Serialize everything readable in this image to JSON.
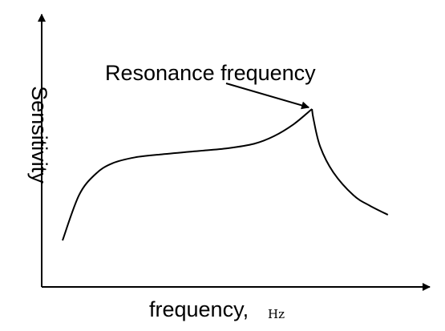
{
  "chart_data": {
    "type": "line",
    "xlabel": "frequency,",
    "xunit": "Hz",
    "ylabel": "Sensitivity",
    "grid": false,
    "annotation": {
      "text": "Resonance frequency",
      "target": "curve-peak"
    },
    "series": [
      {
        "points": [
          [
            0.0,
            0.0
          ],
          [
            0.05,
            0.3
          ],
          [
            0.1,
            0.44
          ],
          [
            0.15,
            0.51
          ],
          [
            0.22,
            0.55
          ],
          [
            0.3,
            0.57
          ],
          [
            0.4,
            0.59
          ],
          [
            0.5,
            0.61
          ],
          [
            0.58,
            0.64
          ],
          [
            0.64,
            0.69
          ],
          [
            0.7,
            0.77
          ],
          [
            0.755,
            0.87
          ],
          [
            0.76,
            0.8
          ],
          [
            0.78,
            0.62
          ],
          [
            0.82,
            0.45
          ],
          [
            0.88,
            0.3
          ],
          [
            0.93,
            0.23
          ],
          [
            0.985,
            0.17
          ]
        ]
      }
    ]
  },
  "colors": {
    "line": "#000000",
    "background": "#ffffff"
  }
}
